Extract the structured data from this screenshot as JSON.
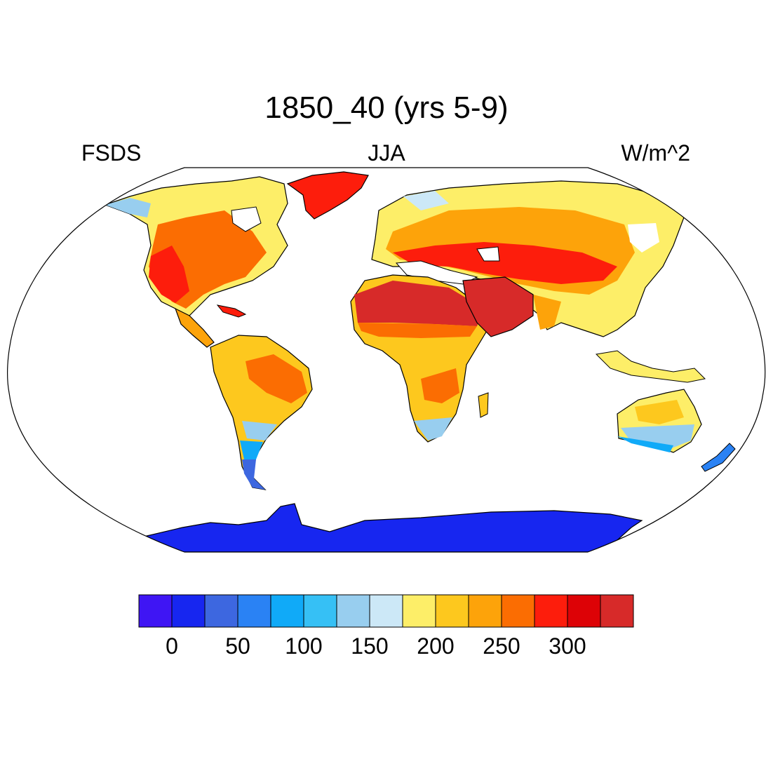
{
  "title": "1850_40 (yrs 5-9)",
  "left_label": "FSDS",
  "center_label": "JJA",
  "right_label": "W/m^2",
  "colorbar": {
    "colors": [
      "#3f15f4",
      "#1726f0",
      "#3d67e0",
      "#2a82f4",
      "#10aaf8",
      "#36c0f5",
      "#98ceef",
      "#cce8f7",
      "#fdee68",
      "#fdc81e",
      "#fda30a",
      "#fb6d02",
      "#fd1d0c",
      "#dd0206",
      "#d72a29"
    ],
    "tick_labels": [
      "0",
      "50",
      "100",
      "150",
      "200",
      "250",
      "300"
    ]
  },
  "map": {
    "projection": "Robinson",
    "ocean_color": "#ffffff",
    "coast_color": "#000000"
  }
}
